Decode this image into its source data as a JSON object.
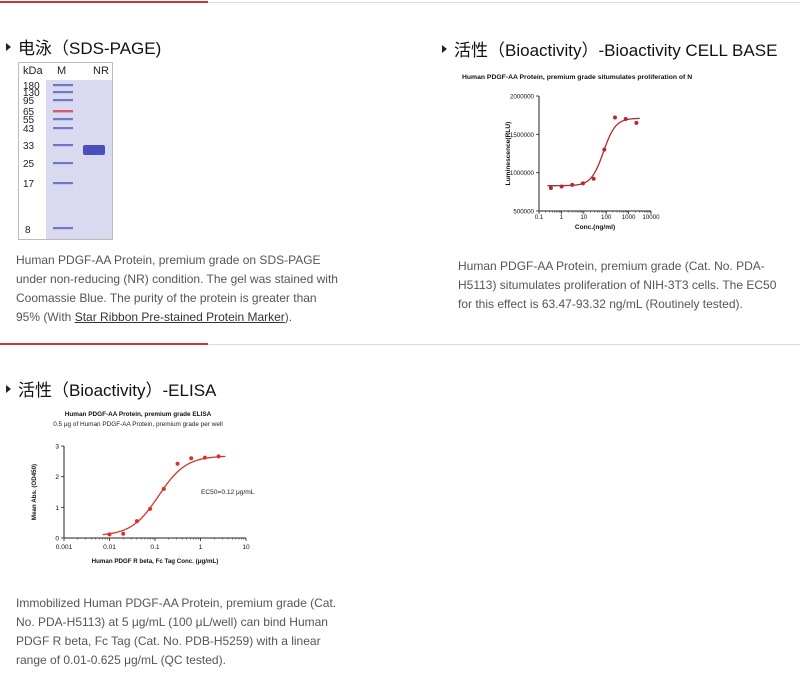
{
  "sections": [
    {
      "title": "电泳（SDS-PAGE)",
      "desc_line1": "Human PDGF-AA Protein, premium grade on SDS-PAGE",
      "desc_line2": "under non-reducing (NR) condition. The gel was stained with",
      "desc_line3": "Coomassie Blue. The purity of the protein is greater than",
      "desc_line4_pre": "95% (With ",
      "desc_line4_link": "Star Ribbon Pre-stained Protein Marker",
      "desc_line4_post": ")."
    },
    {
      "title": "活性（Bioactivity）-Bioactivity CELL BASE",
      "desc_line1": "Human PDGF-AA Protein, premium grade (Cat. No. PDA-",
      "desc_line2": "H5113) situmulates proliferation of NIH-3T3 cells. The EC50",
      "desc_line3": "for this effect is 63.47-93.32 ng/mL (Routinely tested)."
    },
    {
      "title": "活性（Bioactivity）-ELISA",
      "desc_line1": "Immobilized Human PDGF-AA Protein, premium grade (Cat.",
      "desc_line2": "No. PDA-H5113) at 5 μg/mL (100 μL/well) can bind Human",
      "desc_line3": "PDGF R beta, Fc Tag (Cat. No. PDB-H5259) with a linear",
      "desc_line4": "range of 0.01-0.625 μg/mL (QC tested)."
    }
  ],
  "gel": {
    "col_kda": "kDa",
    "col_m": "M",
    "col_nr": "NR",
    "markers": [
      "180",
      "130",
      "95",
      "65",
      "55",
      "43",
      "33",
      "25",
      "17",
      "8"
    ],
    "colors": {
      "background": "#d9d9ef",
      "ladder": "#6e78c8",
      "ladder_red": "#d25a73",
      "sample": "#4b4fbe"
    }
  },
  "chart_data": [
    {
      "type": "scatter",
      "title": "Human PDGF-AA Protein, premium grade situmulates proliferation of NIH-3T3 cells",
      "xlabel": "Conc.(ng/ml)",
      "ylabel": "Luminescence(RLU)",
      "x_scale": "log",
      "xlim": [
        0.1,
        10000
      ],
      "ylim": [
        500000,
        2000000
      ],
      "x_ticks": [
        "0.1",
        "1",
        "10",
        "100",
        "1000",
        "10000"
      ],
      "y_ticks": [
        "500000",
        "1000000",
        "1500000",
        "2000000"
      ],
      "points": {
        "x": [
          0.34,
          1.02,
          3.05,
          9.16,
          27.5,
          82.4,
          247,
          741,
          2222
        ],
        "y": [
          800000,
          820000,
          840000,
          860000,
          920000,
          1300000,
          1720000,
          1700000,
          1650000
        ]
      },
      "fit": {
        "bottom": 830000,
        "top": 1710000,
        "ec50": 75,
        "hill": 1.6
      },
      "colors": {
        "series": "#b5282e",
        "axis": "#222222"
      },
      "grid": false
    },
    {
      "type": "scatter",
      "title": "Human PDGF-AA Protein, premium grade ELISA",
      "subtitle": "0.5 μg of Human PDGF-AA Protein, premium grade per well",
      "xlabel": "Human PDGF R beta, Fc Tag Conc. (μg/mL)",
      "ylabel": "Mean Abs. (OD450)",
      "annotation": "EC50=0.12 μg/mL",
      "x_scale": "log",
      "xlim": [
        0.001,
        10
      ],
      "ylim": [
        0,
        3
      ],
      "x_ticks": [
        "0.001",
        "0.01",
        "0.1",
        "1",
        "10"
      ],
      "y_ticks": [
        "0",
        "1",
        "2",
        "3"
      ],
      "points": {
        "x": [
          0.01,
          0.02,
          0.04,
          0.078,
          0.156,
          0.313,
          0.625,
          1.25,
          2.5
        ],
        "y": [
          0.12,
          0.14,
          0.55,
          0.95,
          1.6,
          2.42,
          2.6,
          2.62,
          2.66
        ]
      },
      "fit": {
        "bottom": 0.07,
        "top": 2.68,
        "ec50": 0.12,
        "hill": 1.45
      },
      "colors": {
        "series": "#d8322a",
        "axis": "#222222"
      },
      "grid": false
    }
  ]
}
